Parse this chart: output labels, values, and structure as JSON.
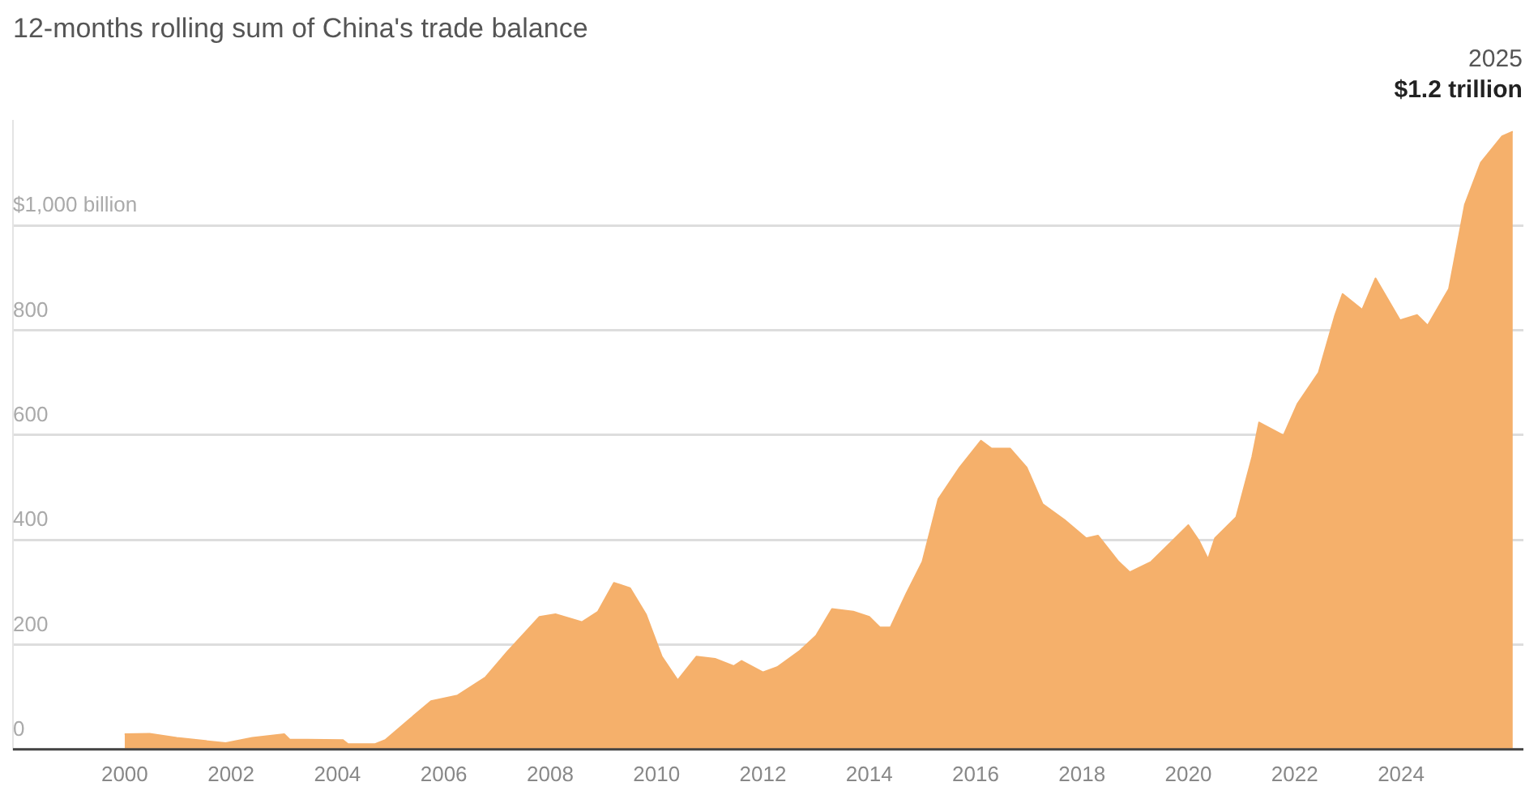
{
  "chart_data": {
    "type": "area",
    "subtitle": "12-months rolling sum of China's trade balance",
    "x": [
      2000.0,
      2000.47,
      2000.98,
      2001.9,
      2002.4,
      2003.0,
      2003.1,
      2004.1,
      2004.2,
      2004.7,
      2004.9,
      2005.35,
      2005.76,
      2006.26,
      2006.78,
      2007.2,
      2007.8,
      2008.1,
      2008.6,
      2008.9,
      2009.2,
      2009.5,
      2009.8,
      2010.1,
      2010.4,
      2010.75,
      2011.1,
      2011.45,
      2011.6,
      2012.0,
      2012.27,
      2012.68,
      2013.0,
      2013.3,
      2013.7,
      2014.0,
      2014.2,
      2014.4,
      2014.7,
      2015.0,
      2015.3,
      2015.7,
      2016.1,
      2016.3,
      2016.65,
      2016.96,
      2017.26,
      2017.67,
      2018.08,
      2018.3,
      2018.69,
      2018.9,
      2019.3,
      2019.7,
      2020.0,
      2020.2,
      2020.37,
      2020.5,
      2020.9,
      2021.2,
      2021.33,
      2021.79,
      2022.05,
      2022.45,
      2022.76,
      2022.9,
      2023.27,
      2023.52,
      2023.98,
      2024.3,
      2024.5,
      2024.9,
      2025.2,
      2025.5,
      2025.9,
      2026.1
    ],
    "series": [
      {
        "color": "#f5b06b",
        "values": [
          29,
          30,
          22,
          12,
          22,
          29,
          19,
          18,
          10,
          10,
          18,
          57,
          92,
          103,
          137,
          187,
          253,
          258,
          243,
          263,
          318,
          308,
          258,
          177,
          132,
          177,
          173,
          159,
          169,
          147,
          157,
          187,
          217,
          268,
          263,
          253,
          233,
          233,
          298,
          358,
          478,
          538,
          589,
          574,
          574,
          538,
          468,
          438,
          403,
          408,
          358,
          338,
          358,
          398,
          428,
          398,
          363,
          403,
          443,
          558,
          624,
          599,
          659,
          719,
          829,
          869,
          839,
          899,
          819,
          829,
          809,
          879,
          1040,
          1120,
          1170,
          1179
        ]
      }
    ],
    "xlim": [
      1997.9,
      2026.3
    ],
    "xticks": [
      2000,
      2002,
      2004,
      2006,
      2008,
      2010,
      2012,
      2014,
      2016,
      2018,
      2020,
      2022,
      2024
    ],
    "ylim": [
      0,
      1200
    ],
    "yticks": [
      0,
      200,
      400,
      600,
      800,
      {
        "value": 1000,
        "label": "$1,000 billion"
      }
    ],
    "grid": "y",
    "annotations": [
      {
        "text": "2025",
        "x": 2026.1,
        "y": 1179
      },
      {
        "text": "$1.2 trillion",
        "x": 2026.1,
        "y": 1179
      }
    ]
  }
}
